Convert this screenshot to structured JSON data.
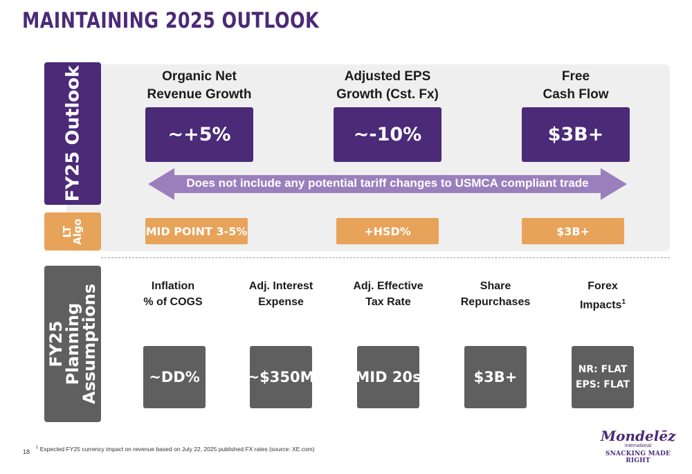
{
  "title": "MAINTAINING 2025 OUTLOOK",
  "side_labels": {
    "outlook": "FY25 Outlook",
    "algo": "LT Algo",
    "planning": "FY25 Planning Assumptions"
  },
  "outlook": {
    "metrics": [
      {
        "heading_line1": "Organic Net",
        "heading_line2": "Revenue Growth",
        "value": "~+5%",
        "lt_algo": "MID POINT 3-5%"
      },
      {
        "heading_line1": "Adjusted EPS",
        "heading_line2": "Growth (Cst. Fx)",
        "value": "~-10%",
        "lt_algo": "+HSD%"
      },
      {
        "heading_line1": "Free",
        "heading_line2": "Cash Flow",
        "value": "$3B+",
        "lt_algo": "$3B+"
      }
    ],
    "arrow_text": "Does not include any potential tariff changes to USMCA compliant trade"
  },
  "assumptions": [
    {
      "line1": "Inflation",
      "line2": "% of COGS",
      "value": "~DD%"
    },
    {
      "line1": "Adj. Interest",
      "line2": "Expense",
      "value": "~$350M"
    },
    {
      "line1": "Adj. Effective",
      "line2": "Tax Rate",
      "value": "MID 20s"
    },
    {
      "line1": "Share",
      "line2": "Repurchases",
      "value": "$3B+"
    },
    {
      "line1": "Forex",
      "line2": "Impacts",
      "superscript": "1",
      "value_line1": "NR: FLAT",
      "value_line2": "EPS: FLAT"
    }
  ],
  "footnote": {
    "marker": "1",
    "text": "Expected FY25 currency impact on revenue based on July 22, 2025 published FX rates (source: XE.com)"
  },
  "page_number": "18",
  "logo": {
    "name": "Mondelēz",
    "sub": "International",
    "tagline": "SNACKING MADE RIGHT"
  },
  "colors": {
    "purple": "#4b2a78",
    "orange": "#e8a35a",
    "gray": "#5f5f5f",
    "arrow": "#9b7fbd",
    "panel": "#efefef"
  }
}
